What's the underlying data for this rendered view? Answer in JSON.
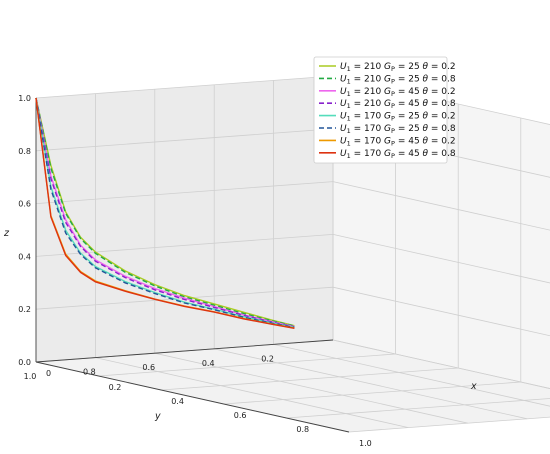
{
  "chart_data": {
    "type": "line",
    "projection": "3d",
    "xlabel": "x",
    "ylabel": "y",
    "zlabel": "z",
    "xlim": [
      0,
      1
    ],
    "ylim": [
      0.1,
      1
    ],
    "zlim": [
      0,
      1
    ],
    "x_ticks": [
      "0",
      "0.2",
      "0.4",
      "0.6",
      "0.8",
      "1.0"
    ],
    "y_ticks": [
      "1.0",
      "0.8",
      "0.6",
      "0.4",
      "0.2"
    ],
    "z_ticks": [
      "0.0",
      "0.2",
      "0.4",
      "0.6",
      "0.8",
      "1.0"
    ],
    "grid": true,
    "legend_position": "top-right",
    "series": [
      {
        "name": "U₁ = 210  G_P = 25  θ = 0.2",
        "legend_math": [
          "U",
          "1",
          " = 210 ",
          "G",
          "P",
          " = 25 ",
          "θ",
          " = 0.2"
        ],
        "color": "#aacc22",
        "dash": "solid",
        "points": [
          [
            0,
            1.0,
            1.0
          ],
          [
            0,
            0.95,
            0.74
          ],
          [
            0,
            0.9,
            0.56
          ],
          [
            0,
            0.85,
            0.46
          ],
          [
            0,
            0.8,
            0.4
          ],
          [
            0,
            0.7,
            0.32
          ],
          [
            0,
            0.6,
            0.26
          ],
          [
            0,
            0.5,
            0.21
          ],
          [
            0,
            0.4,
            0.17
          ],
          [
            0,
            0.3,
            0.13
          ],
          [
            0,
            0.2,
            0.09
          ],
          [
            0,
            0.13,
            0.065
          ]
        ]
      },
      {
        "name": "U₁ = 210  G_P = 25  θ = 0.8",
        "legend_math": [
          "U",
          "1",
          " = 210 ",
          "G",
          "P",
          " = 25 ",
          "θ",
          " = 0.8"
        ],
        "color": "#22aa44",
        "dash": "dashed",
        "points": [
          [
            0,
            1.0,
            1.0
          ],
          [
            0,
            0.95,
            0.73
          ],
          [
            0,
            0.9,
            0.555
          ],
          [
            0,
            0.85,
            0.455
          ],
          [
            0,
            0.8,
            0.395
          ],
          [
            0,
            0.7,
            0.315
          ],
          [
            0,
            0.6,
            0.255
          ],
          [
            0,
            0.5,
            0.205
          ],
          [
            0,
            0.4,
            0.165
          ],
          [
            0,
            0.3,
            0.125
          ],
          [
            0,
            0.2,
            0.088
          ],
          [
            0,
            0.13,
            0.064
          ]
        ]
      },
      {
        "name": "U₁ = 210  G_P = 45  θ = 0.2",
        "legend_math": [
          "U",
          "1",
          " = 210 ",
          "G",
          "P",
          " = 45 ",
          "θ",
          " = 0.2"
        ],
        "color": "#ee66ee",
        "dash": "solid",
        "points": [
          [
            0,
            1.0,
            1.0
          ],
          [
            0,
            0.95,
            0.7
          ],
          [
            0,
            0.9,
            0.53
          ],
          [
            0,
            0.85,
            0.43
          ],
          [
            0,
            0.8,
            0.37
          ],
          [
            0,
            0.7,
            0.3
          ],
          [
            0,
            0.6,
            0.245
          ],
          [
            0,
            0.5,
            0.2
          ],
          [
            0,
            0.4,
            0.16
          ],
          [
            0,
            0.3,
            0.12
          ],
          [
            0,
            0.2,
            0.085
          ],
          [
            0,
            0.13,
            0.062
          ]
        ]
      },
      {
        "name": "U₁ = 210  G_P = 45  θ = 0.8",
        "legend_math": [
          "U",
          "1",
          " = 210 ",
          "G",
          "P",
          " = 45 ",
          "θ",
          " = 0.8"
        ],
        "color": "#8822cc",
        "dash": "dashed",
        "points": [
          [
            0,
            1.0,
            1.0
          ],
          [
            0,
            0.95,
            0.69
          ],
          [
            0,
            0.9,
            0.52
          ],
          [
            0,
            0.85,
            0.425
          ],
          [
            0,
            0.8,
            0.365
          ],
          [
            0,
            0.7,
            0.295
          ],
          [
            0,
            0.6,
            0.24
          ],
          [
            0,
            0.5,
            0.195
          ],
          [
            0,
            0.4,
            0.157
          ],
          [
            0,
            0.3,
            0.118
          ],
          [
            0,
            0.2,
            0.083
          ],
          [
            0,
            0.13,
            0.061
          ]
        ]
      },
      {
        "name": "U₁ = 170  G_P = 25  θ = 0.2",
        "legend_math": [
          "U",
          "1",
          " = 170 ",
          "G",
          "P",
          " = 25 ",
          "θ",
          " = 0.2"
        ],
        "color": "#55ddbb",
        "dash": "solid",
        "points": [
          [
            0,
            1.0,
            1.0
          ],
          [
            0,
            0.95,
            0.66
          ],
          [
            0,
            0.9,
            0.49
          ],
          [
            0,
            0.85,
            0.4
          ],
          [
            0,
            0.8,
            0.345
          ],
          [
            0,
            0.7,
            0.28
          ],
          [
            0,
            0.6,
            0.23
          ],
          [
            0,
            0.5,
            0.185
          ],
          [
            0,
            0.4,
            0.15
          ],
          [
            0,
            0.3,
            0.113
          ],
          [
            0,
            0.2,
            0.08
          ],
          [
            0,
            0.13,
            0.059
          ]
        ]
      },
      {
        "name": "U₁ = 170  G_P = 25  θ = 0.8",
        "legend_math": [
          "U",
          "1",
          " = 170 ",
          "G",
          "P",
          " = 25 ",
          "θ",
          " = 0.8"
        ],
        "color": "#225599",
        "dash": "dashed",
        "points": [
          [
            0,
            1.0,
            1.0
          ],
          [
            0,
            0.95,
            0.65
          ],
          [
            0,
            0.9,
            0.48
          ],
          [
            0,
            0.85,
            0.395
          ],
          [
            0,
            0.8,
            0.34
          ],
          [
            0,
            0.7,
            0.275
          ],
          [
            0,
            0.6,
            0.226
          ],
          [
            0,
            0.5,
            0.182
          ],
          [
            0,
            0.4,
            0.148
          ],
          [
            0,
            0.3,
            0.111
          ],
          [
            0,
            0.2,
            0.079
          ],
          [
            0,
            0.13,
            0.058
          ]
        ]
      },
      {
        "name": "U₁ = 170  G_P = 45  θ = 0.2",
        "legend_math": [
          "U",
          "1",
          " = 170 ",
          "G",
          "P",
          " = 45 ",
          "θ",
          " = 0.2"
        ],
        "color": "#ee9900",
        "dash": "solid",
        "points": [
          [
            0,
            1.0,
            1.0
          ],
          [
            0,
            0.95,
            0.55
          ],
          [
            0,
            0.9,
            0.4
          ],
          [
            0,
            0.85,
            0.33
          ],
          [
            0,
            0.8,
            0.29
          ],
          [
            0,
            0.7,
            0.245
          ],
          [
            0,
            0.6,
            0.205
          ],
          [
            0,
            0.5,
            0.17
          ],
          [
            0,
            0.4,
            0.14
          ],
          [
            0,
            0.3,
            0.106
          ],
          [
            0,
            0.2,
            0.076
          ],
          [
            0,
            0.13,
            0.056
          ]
        ]
      },
      {
        "name": "U₁ = 170  G_P = 45  θ = 0.8",
        "legend_math": [
          "U",
          "1",
          " = 170 ",
          "G",
          "P",
          " = 45 ",
          "θ",
          " = 0.8"
        ],
        "color": "#dd3311",
        "dash": "solid",
        "points": [
          [
            0,
            1.0,
            1.0
          ],
          [
            0,
            0.95,
            0.545
          ],
          [
            0,
            0.9,
            0.395
          ],
          [
            0,
            0.85,
            0.327
          ],
          [
            0,
            0.8,
            0.287
          ],
          [
            0,
            0.7,
            0.243
          ],
          [
            0,
            0.6,
            0.204
          ],
          [
            0,
            0.5,
            0.169
          ],
          [
            0,
            0.4,
            0.139
          ],
          [
            0,
            0.3,
            0.105
          ],
          [
            0,
            0.2,
            0.075
          ],
          [
            0,
            0.13,
            0.055
          ]
        ]
      }
    ]
  }
}
